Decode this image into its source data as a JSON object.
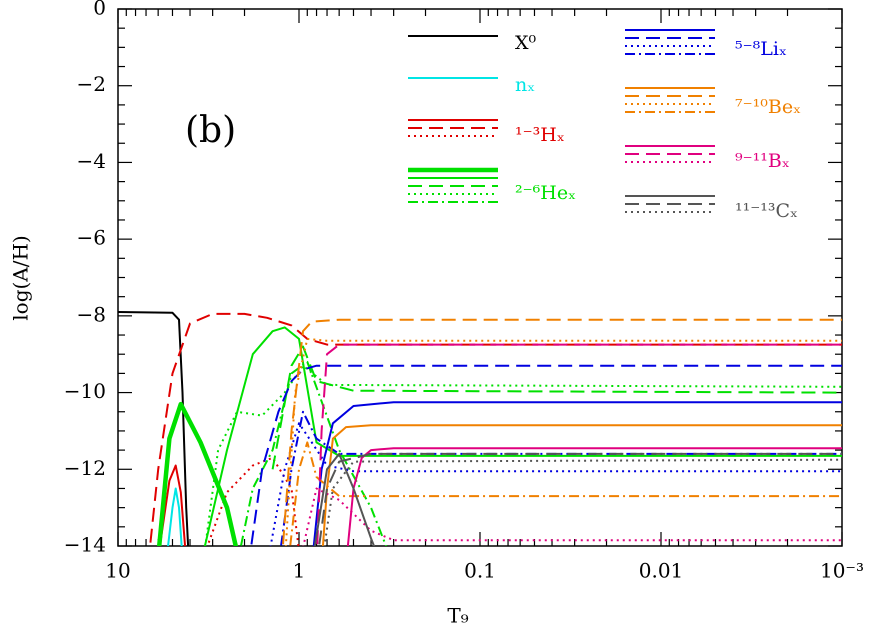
{
  "chart_data": {
    "type": "line",
    "x_label": "T₉",
    "y_label": "log(A/H)",
    "annotation": "(b)",
    "x_scale": "log",
    "x_reversed": true,
    "xlim": [
      10,
      0.001
    ],
    "xticks": [
      10,
      1,
      0.1,
      0.01,
      {
        "value": 0.001,
        "label": "10⁻³"
      }
    ],
    "ylim": [
      -14,
      0
    ],
    "yticks": [
      {
        "value": -14,
        "label": "−14"
      },
      {
        "value": -12,
        "label": "−12"
      },
      {
        "value": -10,
        "label": "−10"
      },
      {
        "value": -8,
        "label": "−8"
      },
      {
        "value": -6,
        "label": "−6"
      },
      {
        "value": -4,
        "label": "−4"
      },
      {
        "value": -2,
        "label": "−2"
      },
      0
    ],
    "series": [
      {
        "name": "X⁰",
        "color": "#000000",
        "lines": [
          {
            "style": "solid",
            "x": [
              10,
              5,
              4.6,
              4.4,
              4.2,
              4.0
            ],
            "values": [
              -7.9,
              -7.92,
              -8.1,
              -10,
              -13,
              -15
            ]
          }
        ]
      },
      {
        "name": "nₓ",
        "color": "#00e5e5",
        "lines": [
          {
            "style": "solid",
            "x": [
              5.6,
              5.0,
              4.8,
              4.6,
              4.3
            ],
            "values": [
              -15,
              -13,
              -12.5,
              -13,
              -15
            ]
          }
        ]
      },
      {
        "name": "¹⁻³Hₓ",
        "color": "#e00000",
        "lines": [
          {
            "style": "solid",
            "x": [
              6.3,
              5.2,
              4.8,
              4.5,
              4.1
            ],
            "values": [
              -15,
              -12.3,
              -11.9,
              -12.6,
              -15
            ]
          },
          {
            "style": "dashed",
            "x": [
              7,
              6,
              5,
              4,
              3,
              2,
              1.5,
              1.1,
              0.9,
              0.7,
              0.001
            ],
            "values": [
              -15,
              -12,
              -9.5,
              -8.2,
              -7.95,
              -7.95,
              -8.05,
              -8.25,
              -8.6,
              -8.75,
              -8.75
            ]
          },
          {
            "style": "dotted",
            "x": [
              3.5,
              2.5,
              1.8,
              1.4,
              1.1,
              0.95
            ],
            "values": [
              -14.5,
              -12.6,
              -11.9,
              -11.7,
              -12.5,
              -15
            ]
          }
        ]
      },
      {
        "name": "²⁻⁶Heₓ",
        "color": "#00e000",
        "lines": [
          {
            "style": "thick",
            "x": [
              6.2,
              5.2,
              4.5,
              3.5,
              2.5,
              2.0
            ],
            "values": [
              -15,
              -11.2,
              -10.3,
              -11.3,
              -13,
              -15
            ]
          },
          {
            "style": "solid",
            "x": [
              3.5,
              2.5,
              1.8,
              1.4,
              1.2,
              1.0,
              0.8,
              0.6,
              0.001
            ],
            "values": [
              -14.5,
              -11.5,
              -9.0,
              -8.4,
              -8.3,
              -8.6,
              -11.3,
              -11.65,
              -11.65
            ]
          },
          {
            "style": "dashed",
            "x": [
              1.4,
              1.1,
              0.95,
              0.8,
              0.5,
              0.001
            ],
            "values": [
              -12,
              -9.3,
              -8.8,
              -9.7,
              -9.95,
              -10.0
            ]
          },
          {
            "style": "dotted",
            "x": [
              3.4,
              2.8,
              2.2,
              1.6,
              1.2,
              0.95,
              0.7,
              0.001
            ],
            "values": [
              -14.5,
              -11.5,
              -10.5,
              -10.6,
              -10,
              -9.3,
              -9.8,
              -9.85
            ]
          },
          {
            "style": "dashdot",
            "x": [
              2.2,
              1.8,
              1.4,
              1.1,
              0.9,
              0.6,
              0.4,
              0.3
            ],
            "values": [
              -14.5,
              -12.5,
              -11.5,
              -9.5,
              -9.2,
              -11.5,
              -13,
              -14.5
            ]
          }
        ]
      },
      {
        "name": "⁵⁻⁸Liₓ",
        "color": "#0000e0",
        "lines": [
          {
            "style": "solid",
            "x": [
              0.85,
              0.75,
              0.65,
              0.5,
              0.3,
              0.001
            ],
            "values": [
              -14.5,
              -12,
              -10.8,
              -10.35,
              -10.25,
              -10.25
            ]
          },
          {
            "style": "dashed",
            "x": [
              1.9,
              1.6,
              1.3,
              1.1,
              0.95,
              0.8,
              0.001
            ],
            "values": [
              -14.5,
              -12,
              -10.5,
              -9.7,
              -9.4,
              -9.3,
              -9.3
            ]
          },
          {
            "style": "dotted",
            "x": [
              1.5,
              1.2,
              1.0,
              0.85,
              0.7,
              0.5,
              0.001
            ],
            "values": [
              -14.5,
              -12,
              -10.8,
              -11.3,
              -11.9,
              -12.05,
              -12.05
            ]
          },
          {
            "style": "dashdot",
            "x": [
              1.3,
              1.1,
              0.95,
              0.8,
              0.6,
              0.001
            ],
            "values": [
              -14.5,
              -12,
              -10.5,
              -11.2,
              -11.6,
              -11.6
            ]
          }
        ]
      },
      {
        "name": "⁷⁻¹⁰Beₓ",
        "color": "#f08000",
        "lines": [
          {
            "style": "solid",
            "x": [
              0.75,
              0.7,
              0.65,
              0.55,
              0.4,
              0.001
            ],
            "values": [
              -14.5,
              -12.5,
              -11.2,
              -10.9,
              -10.85,
              -10.85
            ]
          },
          {
            "style": "dashed",
            "x": [
              1.25,
              1.1,
              0.95,
              0.85,
              0.6,
              0.001
            ],
            "values": [
              -14.5,
              -11,
              -8.4,
              -8.15,
              -8.1,
              -8.1
            ]
          },
          {
            "style": "dotted",
            "x": [
              1.2,
              1.05,
              0.9,
              0.7,
              0.001
            ],
            "values": [
              -14.5,
              -10,
              -8.6,
              -8.65,
              -8.65
            ]
          },
          {
            "style": "dashdot",
            "x": [
              1.15,
              1.0,
              0.9,
              0.8,
              0.6,
              0.001
            ],
            "values": [
              -14.5,
              -12,
              -11.3,
              -12.2,
              -12.7,
              -12.7
            ]
          }
        ]
      },
      {
        "name": "⁹⁻¹¹Bₓ",
        "color": "#e0007f",
        "lines": [
          {
            "style": "solid",
            "x": [
              0.55,
              0.5,
              0.45,
              0.4,
              0.3,
              0.001
            ],
            "values": [
              -14.5,
              -12.5,
              -11.7,
              -11.5,
              -11.45,
              -11.45
            ]
          },
          {
            "style": "dashed",
            "x": [
              0.8,
              0.75,
              0.7,
              0.6,
              0.001
            ],
            "values": [
              -14.5,
              -11,
              -9,
              -8.75,
              -8.75
            ]
          },
          {
            "style": "dotted",
            "x": [
              1.0,
              0.8,
              0.6,
              0.4,
              0.3,
              0.001
            ],
            "values": [
              -14.5,
              -12.5,
              -12.8,
              -13.6,
              -13.85,
              -13.85
            ]
          }
        ]
      },
      {
        "name": "¹¹⁻¹³Cₓ",
        "color": "#555555",
        "lines": [
          {
            "style": "solid",
            "x": [
              0.85,
              0.7,
              0.6,
              0.5,
              0.4,
              0.35
            ],
            "values": [
              -14.5,
              -12,
              -11.6,
              -12.5,
              -13.8,
              -14.5
            ]
          },
          {
            "style": "dashed",
            "x": [
              0.8,
              0.7,
              0.6,
              0.4,
              0.001
            ],
            "values": [
              -14.5,
              -12.5,
              -11.8,
              -11.6,
              -11.6
            ]
          },
          {
            "style": "dotted",
            "x": [
              0.75,
              0.65,
              0.5,
              0.001
            ],
            "values": [
              -14.5,
              -12.5,
              -11.8,
              -11.75
            ]
          }
        ]
      }
    ]
  }
}
